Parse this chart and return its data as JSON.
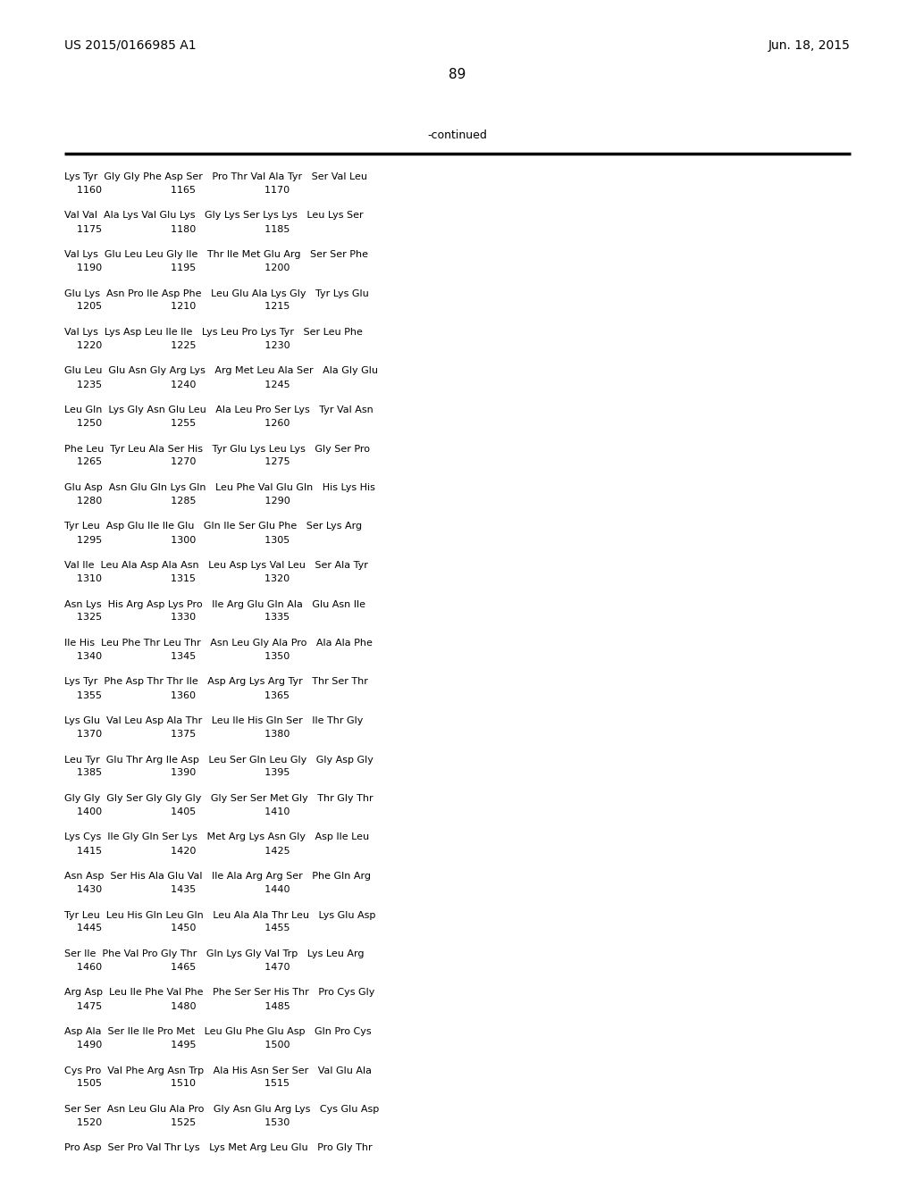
{
  "header_left": "US 2015/0166985 A1",
  "header_right": "Jun. 18, 2015",
  "page_number": "89",
  "continued_label": "-continued",
  "background_color": "#ffffff",
  "text_color": "#000000",
  "rows": [
    [
      "Lys Tyr  Gly Gly Phe Asp Ser   Pro Thr Val Ala Tyr   Ser Val Leu",
      "    1160                      1165                      1170"
    ],
    [
      "Val Val  Ala Lys Val Glu Lys   Gly Lys Ser Lys Lys   Leu Lys Ser",
      "    1175                      1180                      1185"
    ],
    [
      "Val Lys  Glu Leu Leu Gly Ile   Thr Ile Met Glu Arg   Ser Ser Phe",
      "    1190                      1195                      1200"
    ],
    [
      "Glu Lys  Asn Pro Ile Asp Phe   Leu Glu Ala Lys Gly   Tyr Lys Glu",
      "    1205                      1210                      1215"
    ],
    [
      "Val Lys  Lys Asp Leu Ile Ile   Lys Leu Pro Lys Tyr   Ser Leu Phe",
      "    1220                      1225                      1230"
    ],
    [
      "Glu Leu  Glu Asn Gly Arg Lys   Arg Met Leu Ala Ser   Ala Gly Glu",
      "    1235                      1240                      1245"
    ],
    [
      "Leu Gln  Lys Gly Asn Glu Leu   Ala Leu Pro Ser Lys   Tyr Val Asn",
      "    1250                      1255                      1260"
    ],
    [
      "Phe Leu  Tyr Leu Ala Ser His   Tyr Glu Lys Leu Lys   Gly Ser Pro",
      "    1265                      1270                      1275"
    ],
    [
      "Glu Asp  Asn Glu Gln Lys Gln   Leu Phe Val Glu Gln   His Lys His",
      "    1280                      1285                      1290"
    ],
    [
      "Tyr Leu  Asp Glu Ile Ile Glu   Gln Ile Ser Glu Phe   Ser Lys Arg",
      "    1295                      1300                      1305"
    ],
    [
      "Val Ile  Leu Ala Asp Ala Asn   Leu Asp Lys Val Leu   Ser Ala Tyr",
      "    1310                      1315                      1320"
    ],
    [
      "Asn Lys  His Arg Asp Lys Pro   Ile Arg Glu Gln Ala   Glu Asn Ile",
      "    1325                      1330                      1335"
    ],
    [
      "Ile His  Leu Phe Thr Leu Thr   Asn Leu Gly Ala Pro   Ala Ala Phe",
      "    1340                      1345                      1350"
    ],
    [
      "Lys Tyr  Phe Asp Thr Thr Ile   Asp Arg Lys Arg Tyr   Thr Ser Thr",
      "    1355                      1360                      1365"
    ],
    [
      "Lys Glu  Val Leu Asp Ala Thr   Leu Ile His Gln Ser   Ile Thr Gly",
      "    1370                      1375                      1380"
    ],
    [
      "Leu Tyr  Glu Thr Arg Ile Asp   Leu Ser Gln Leu Gly   Gly Asp Gly",
      "    1385                      1390                      1395"
    ],
    [
      "Gly Gly  Gly Ser Gly Gly Gly   Gly Ser Ser Met Gly   Thr Gly Thr",
      "    1400                      1405                      1410"
    ],
    [
      "Lys Cys  Ile Gly Gln Ser Lys   Met Arg Lys Asn Gly   Asp Ile Leu",
      "    1415                      1420                      1425"
    ],
    [
      "Asn Asp  Ser His Ala Glu Val   Ile Ala Arg Arg Ser   Phe Gln Arg",
      "    1430                      1435                      1440"
    ],
    [
      "Tyr Leu  Leu His Gln Leu Gln   Leu Ala Ala Thr Leu   Lys Glu Asp",
      "    1445                      1450                      1455"
    ],
    [
      "Ser Ile  Phe Val Pro Gly Thr   Gln Lys Gly Val Trp   Lys Leu Arg",
      "    1460                      1465                      1470"
    ],
    [
      "Arg Asp  Leu Ile Phe Val Phe   Phe Ser Ser His Thr   Pro Cys Gly",
      "    1475                      1480                      1485"
    ],
    [
      "Asp Ala  Ser Ile Ile Pro Met   Leu Glu Phe Glu Asp   Gln Pro Cys",
      "    1490                      1495                      1500"
    ],
    [
      "Cys Pro  Val Phe Arg Asn Trp   Ala His Asn Ser Ser   Val Glu Ala",
      "    1505                      1510                      1515"
    ],
    [
      "Ser Ser  Asn Leu Glu Ala Pro   Gly Asn Glu Arg Lys   Cys Glu Asp",
      "    1520                      1525                      1530"
    ],
    [
      "Pro Asp  Ser Pro Val Thr Lys   Lys Met Arg Leu Glu   Pro Gly Thr",
      ""
    ]
  ]
}
